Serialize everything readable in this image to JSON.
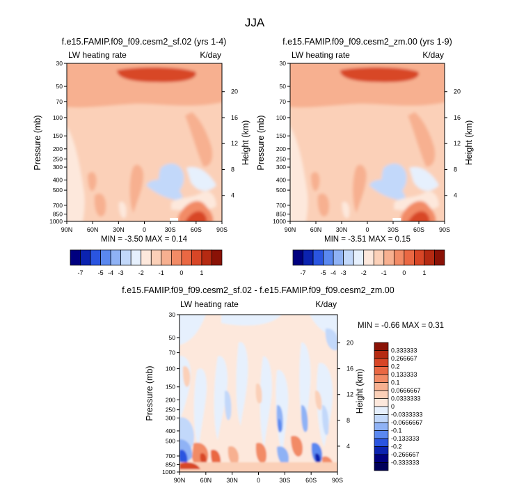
{
  "figure": {
    "title": "JJA"
  },
  "chart_data": [
    {
      "type": "heatmap",
      "title": "f.e15.FAMIP.f09_f09.cesm2_sf.02 (yrs 1-4)",
      "left_string": "LW heating rate",
      "right_string": "K/day",
      "xlabel": "",
      "ylabel": "Pressure (mb)",
      "y2label": "Height (km)",
      "x_ticks": [
        "90N",
        "60N",
        "30N",
        "0",
        "30S",
        "60S",
        "90S"
      ],
      "y_ticks": [
        "30",
        "50",
        "70",
        "100",
        "150",
        "200",
        "250",
        "300",
        "400",
        "500",
        "700",
        "850",
        "1000"
      ],
      "y2_ticks": [
        "20",
        "16",
        "12",
        "8",
        "4"
      ],
      "ylim": [
        1000,
        30
      ],
      "stats": "MIN =  -3.50  MAX =  0.14",
      "min": -3.5,
      "max": 0.14
    },
    {
      "type": "heatmap",
      "title": "f.e15.FAMIP.f09_f09.cesm2_zm.00 (yrs 1-9)",
      "left_string": "LW heating rate",
      "right_string": "K/day",
      "xlabel": "",
      "ylabel": "Pressure (mb)",
      "y2label": "Height (km)",
      "x_ticks": [
        "90N",
        "60N",
        "30N",
        "0",
        "30S",
        "60S",
        "90S"
      ],
      "y_ticks": [
        "30",
        "50",
        "70",
        "100",
        "150",
        "200",
        "250",
        "300",
        "400",
        "500",
        "700",
        "850",
        "1000"
      ],
      "y2_ticks": [
        "20",
        "16",
        "12",
        "8",
        "4"
      ],
      "ylim": [
        1000,
        30
      ],
      "stats": "MIN =  -3.51  MAX =  0.15",
      "min": -3.51,
      "max": 0.15
    },
    {
      "type": "heatmap",
      "title": "f.e15.FAMIP.f09_f09.cesm2_sf.02 - f.e15.FAMIP.f09_f09.cesm2_zm.00",
      "left_string": "LW heating rate",
      "right_string": "K/day",
      "xlabel": "",
      "ylabel": "Pressure (mb)",
      "y2label": "Height (km)",
      "x_ticks": [
        "90N",
        "60N",
        "30N",
        "0",
        "30S",
        "60S",
        "90S"
      ],
      "y_ticks": [
        "30",
        "50",
        "70",
        "100",
        "150",
        "200",
        "250",
        "300",
        "400",
        "500",
        "700",
        "850",
        "1000"
      ],
      "y2_ticks": [
        "20",
        "16",
        "12",
        "8",
        "4"
      ],
      "ylim": [
        1000,
        30
      ],
      "stats": "MIN =  -0.66  MAX =  0.31",
      "min": -0.66,
      "max": 0.31
    }
  ],
  "colorbar_main": {
    "labels": [
      "-7",
      "-5",
      "-4",
      "-3",
      "-2",
      "-1",
      "0",
      "1"
    ],
    "colors": [
      "#00007f",
      "#0b23b0",
      "#2a55e0",
      "#5a88f0",
      "#8fb2f5",
      "#c2d8fa",
      "#e6f0fd",
      "#fde8dc",
      "#fbd0b8",
      "#f7b090",
      "#f28b66",
      "#ea6843",
      "#d84626",
      "#b52a12",
      "#8a1206"
    ]
  },
  "colorbar_diff": {
    "labels": [
      "0.333333",
      "0.266667",
      "0.2",
      "0.133333",
      "0.1",
      "0.0666667",
      "0.0333333",
      "0",
      "-0.0333333",
      "-0.0666667",
      "-0.1",
      "-0.133333",
      "-0.2",
      "-0.266667",
      "-0.333333"
    ],
    "colors": [
      "#8a1206",
      "#b52a12",
      "#d84626",
      "#ea6843",
      "#f28b66",
      "#f7b090",
      "#fbd0b8",
      "#fde8dc",
      "#e6f0fd",
      "#c2d8fa",
      "#8fb2f5",
      "#5a88f0",
      "#2a55e0",
      "#0b23b0",
      "#00007f",
      "#00005a"
    ]
  }
}
